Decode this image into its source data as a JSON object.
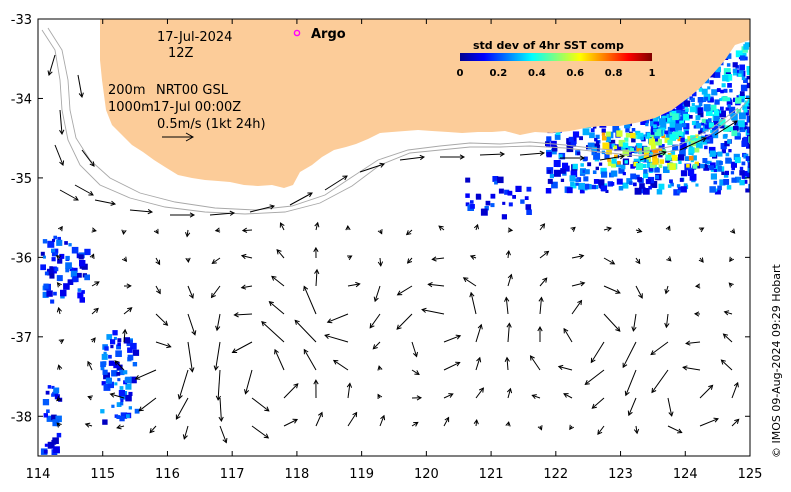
{
  "chart_data": {
    "type": "map",
    "xlim": [
      114,
      125
    ],
    "ylim": [
      -38.5,
      -33
    ],
    "x_ticks": [
      "114",
      "115",
      "116",
      "117",
      "118",
      "119",
      "120",
      "121",
      "122",
      "123",
      "124",
      "125"
    ],
    "y_ticks": [
      "-33",
      "-34",
      "-35",
      "-36",
      "-37",
      "-38"
    ],
    "land_color": "#fccc99",
    "annotations": {
      "date": "17-Jul-2024",
      "time": "12Z",
      "depth_line": "200m",
      "product": "NRT00 GSL",
      "depth_line2": "1000m",
      "analysis_time": "17-Jul 00:00Z",
      "scale_label": "0.5m/s (1kt 24h)",
      "argo_label": "Argo"
    },
    "colorbar": {
      "title": "std dev of 4hr SST comp",
      "ticks": [
        "0",
        "0.2",
        "0.4",
        "0.6",
        "0.8",
        "1"
      ],
      "range": [
        0,
        1
      ],
      "colormap": "jet"
    },
    "argo_marker_color": "#ff00ff",
    "copyright": "© IMOS 09-Aug-2024 09:29 Hobart"
  }
}
